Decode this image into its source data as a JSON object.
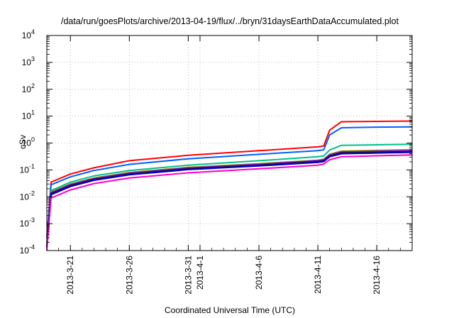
{
  "chart_data": {
    "type": "line",
    "title": "/data/run/goesPlots/archive/2013-04-19/flux/../bryn/31daysEarthDataAccumulated.plot",
    "xlabel": "Coordinated Universal Time (UTC)",
    "ylabel": "cSv",
    "y_scale": "log",
    "ylim": [
      0.0001,
      10000
    ],
    "xlim": [
      "2013-03-19",
      "2013-04-19"
    ],
    "grid": true,
    "legend": "none",
    "y_ticks": [
      {
        "value": 0.0001,
        "base": "10",
        "exp": "-4"
      },
      {
        "value": 0.001,
        "base": "10",
        "exp": "-3"
      },
      {
        "value": 0.01,
        "base": "10",
        "exp": "-2"
      },
      {
        "value": 0.1,
        "base": "10",
        "exp": "-1"
      },
      {
        "value": 1,
        "base": "10",
        "exp": "0"
      },
      {
        "value": 10,
        "base": "10",
        "exp": "1"
      },
      {
        "value": 100,
        "base": "10",
        "exp": "2"
      },
      {
        "value": 1000,
        "base": "10",
        "exp": "3"
      },
      {
        "value": 10000,
        "base": "10",
        "exp": "4"
      }
    ],
    "x_ticks": [
      {
        "date": "2013-03-21",
        "label": "2013-3-21"
      },
      {
        "date": "2013-03-26",
        "label": "2013-3-26"
      },
      {
        "date": "2013-03-31",
        "label": "2013-3-31"
      },
      {
        "date": "2013-04-01",
        "label": "2013-4-1"
      },
      {
        "date": "2013-04-06",
        "label": "2013-4-6"
      },
      {
        "date": "2013-04-11",
        "label": "2013-4-11"
      },
      {
        "date": "2013-04-16",
        "label": "2013-4-16"
      }
    ],
    "series": [
      {
        "color": "#ff0000",
        "x": [
          "2013-03-19",
          "2013-03-20",
          "2013-03-21",
          "2013-03-23",
          "2013-03-26",
          "2013-03-31",
          "2013-04-06",
          "2013-04-11",
          "2013-04-11T12:00",
          "2013-04-12",
          "2013-04-13",
          "2013-04-16",
          "2013-04-19"
        ],
        "y": [
          0.0003,
          0.035,
          0.07,
          0.12,
          0.22,
          0.35,
          0.52,
          0.72,
          0.78,
          3.0,
          6.2,
          6.4,
          6.6
        ]
      },
      {
        "color": "#0060ff",
        "x": [
          "2013-03-19",
          "2013-03-20",
          "2013-03-21",
          "2013-03-23",
          "2013-03-26",
          "2013-03-31",
          "2013-04-06",
          "2013-04-11",
          "2013-04-11T12:00",
          "2013-04-12",
          "2013-04-13",
          "2013-04-16",
          "2013-04-19"
        ],
        "y": [
          0.0003,
          0.028,
          0.055,
          0.095,
          0.16,
          0.26,
          0.38,
          0.52,
          0.56,
          2.0,
          3.7,
          3.9,
          4.0
        ]
      },
      {
        "color": "#00c08c",
        "x": [
          "2013-03-19",
          "2013-03-20",
          "2013-03-21",
          "2013-03-23",
          "2013-03-26",
          "2013-03-31",
          "2013-04-06",
          "2013-04-11",
          "2013-04-11T12:00",
          "2013-04-12",
          "2013-04-13",
          "2013-04-16",
          "2013-04-19"
        ],
        "y": [
          0.0002,
          0.017,
          0.035,
          0.06,
          0.095,
          0.15,
          0.22,
          0.31,
          0.33,
          0.55,
          0.82,
          0.86,
          0.9
        ]
      },
      {
        "color": "#8c8c00",
        "x": [
          "2013-03-19",
          "2013-03-20",
          "2013-03-21",
          "2013-03-23",
          "2013-03-26",
          "2013-03-31",
          "2013-04-06",
          "2013-04-11",
          "2013-04-11T12:00",
          "2013-04-12",
          "2013-04-13",
          "2013-04-16",
          "2013-04-19"
        ],
        "y": [
          0.00015,
          0.015,
          0.03,
          0.05,
          0.08,
          0.125,
          0.17,
          0.23,
          0.25,
          0.38,
          0.5,
          0.53,
          0.56
        ]
      },
      {
        "color": "#8000ff",
        "x": [
          "2013-03-19",
          "2013-03-20",
          "2013-03-21",
          "2013-03-23",
          "2013-03-26",
          "2013-03-31",
          "2013-04-06",
          "2013-04-11",
          "2013-04-11T12:00",
          "2013-04-12",
          "2013-04-13",
          "2013-04-16",
          "2013-04-19"
        ],
        "y": [
          0.00015,
          0.014,
          0.028,
          0.047,
          0.075,
          0.118,
          0.16,
          0.22,
          0.235,
          0.36,
          0.46,
          0.49,
          0.52
        ]
      },
      {
        "color": "#1a1a1a",
        "x": [
          "2013-03-19",
          "2013-03-20",
          "2013-03-21",
          "2013-03-23",
          "2013-03-26",
          "2013-03-31",
          "2013-04-06",
          "2013-04-11",
          "2013-04-11T12:00",
          "2013-04-12",
          "2013-04-13",
          "2013-04-16",
          "2013-04-19"
        ],
        "y": [
          0.00014,
          0.013,
          0.026,
          0.044,
          0.07,
          0.11,
          0.15,
          0.205,
          0.22,
          0.33,
          0.43,
          0.455,
          0.48
        ]
      },
      {
        "color": "#0000c8",
        "x": [
          "2013-03-19",
          "2013-03-20",
          "2013-03-21",
          "2013-03-23",
          "2013-03-26",
          "2013-03-31",
          "2013-04-06",
          "2013-04-11",
          "2013-04-11T12:00",
          "2013-04-12",
          "2013-04-13",
          "2013-04-16",
          "2013-04-19"
        ],
        "y": [
          0.00013,
          0.012,
          0.024,
          0.041,
          0.066,
          0.103,
          0.14,
          0.19,
          0.205,
          0.31,
          0.4,
          0.425,
          0.45
        ]
      },
      {
        "color": "#ff00c8",
        "x": [
          "2013-03-19",
          "2013-03-20",
          "2013-03-21",
          "2013-03-23",
          "2013-03-26",
          "2013-03-31",
          "2013-04-06",
          "2013-04-11",
          "2013-04-11T12:00",
          "2013-04-12",
          "2013-04-13",
          "2013-04-16",
          "2013-04-19"
        ],
        "y": [
          0.0001,
          0.009,
          0.018,
          0.031,
          0.05,
          0.078,
          0.11,
          0.15,
          0.165,
          0.24,
          0.31,
          0.335,
          0.36
        ]
      }
    ]
  }
}
